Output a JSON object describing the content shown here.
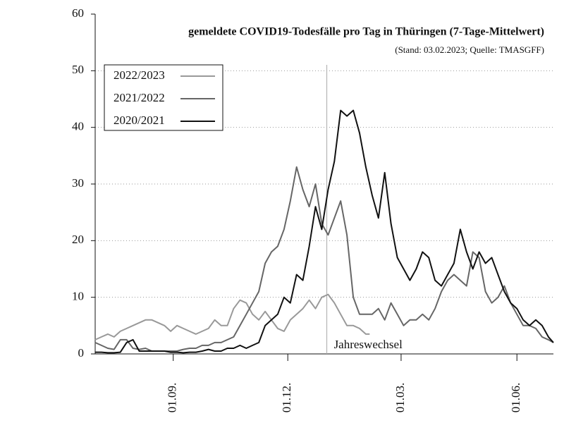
{
  "chart_data": {
    "type": "line",
    "title": "gemeldete COVID19-Todesfälle pro Tag in Thüringen (7-Tage-Mittelwert)",
    "subtitle": "(Stand: 03.02.2023; Quelle: TMASGFF)",
    "xlim": [
      0,
      364
    ],
    "xticks": [
      {
        "value": 62,
        "label": "01.09."
      },
      {
        "value": 153,
        "label": "01.12."
      },
      {
        "value": 243,
        "label": "01.03."
      },
      {
        "value": 335,
        "label": "01.06."
      }
    ],
    "ylim": [
      0,
      60
    ],
    "yticks": [
      0,
      10,
      20,
      30,
      40,
      50,
      60
    ],
    "grid": true,
    "legend": "upper left",
    "annotation": {
      "text": "Jahreswechsel",
      "x": 184
    },
    "series": [
      {
        "name": "2022/2023",
        "color": "#999999",
        "x": [
          0,
          5,
          10,
          15,
          20,
          25,
          30,
          35,
          40,
          45,
          50,
          55,
          60,
          65,
          70,
          75,
          80,
          85,
          90,
          95,
          100,
          105,
          110,
          115,
          120,
          125,
          130,
          135,
          140,
          145,
          150,
          155,
          160,
          165,
          170,
          175,
          180,
          185,
          190,
          195,
          200,
          205,
          210,
          215,
          218
        ],
        "values": [
          2.5,
          3,
          3.5,
          3,
          4,
          4.5,
          5,
          5.5,
          6,
          6,
          5.5,
          5,
          4,
          5,
          4.5,
          4,
          3.5,
          4,
          4.5,
          6,
          5,
          5,
          8,
          9.5,
          9,
          7,
          6,
          7.5,
          6,
          4.5,
          4,
          6,
          7,
          8,
          9.5,
          8,
          10,
          10.5,
          9,
          7,
          5,
          5,
          4.5,
          3.5,
          3.5
        ]
      },
      {
        "name": "2021/2022",
        "color": "#666666",
        "x": [
          0,
          5,
          10,
          15,
          20,
          25,
          30,
          35,
          40,
          45,
          50,
          55,
          60,
          65,
          70,
          75,
          80,
          85,
          90,
          95,
          100,
          105,
          110,
          115,
          120,
          125,
          130,
          135,
          140,
          145,
          150,
          155,
          160,
          165,
          170,
          175,
          180,
          185,
          190,
          195,
          200,
          205,
          210,
          215,
          220,
          225,
          230,
          235,
          240,
          245,
          250,
          255,
          260,
          265,
          270,
          275,
          280,
          285,
          290,
          295,
          300,
          305,
          310,
          315,
          320,
          325,
          330,
          335,
          340,
          345,
          350,
          355,
          360,
          364
        ],
        "values": [
          2,
          1.5,
          1,
          0.8,
          2.5,
          2.5,
          1,
          0.8,
          1,
          0.5,
          0.5,
          0.5,
          0.5,
          0.5,
          0.8,
          1,
          1,
          1.5,
          1.5,
          2,
          2,
          2.5,
          3,
          5,
          7,
          9,
          11,
          16,
          18,
          19,
          22,
          27,
          33,
          29,
          26,
          30,
          23,
          21,
          24,
          27,
          21,
          10,
          7,
          7,
          7,
          8,
          6,
          9,
          7,
          5,
          6,
          6,
          7,
          6,
          8,
          11,
          13,
          14,
          13,
          12,
          18,
          17,
          11,
          9,
          10,
          12,
          9,
          7,
          5,
          5,
          4.5,
          3,
          2.5,
          2
        ]
      },
      {
        "name": "2020/2021",
        "color": "#111111",
        "x": [
          0,
          5,
          10,
          15,
          20,
          25,
          30,
          35,
          40,
          45,
          50,
          55,
          60,
          65,
          70,
          75,
          80,
          85,
          90,
          95,
          100,
          105,
          110,
          115,
          120,
          125,
          130,
          135,
          140,
          145,
          150,
          155,
          160,
          165,
          170,
          175,
          180,
          185,
          190,
          195,
          200,
          205,
          210,
          215,
          220,
          225,
          230,
          235,
          240,
          245,
          250,
          255,
          260,
          265,
          270,
          275,
          280,
          285,
          290,
          295,
          300,
          305,
          310,
          315,
          320,
          325,
          330,
          335,
          340,
          345,
          350,
          355,
          360,
          364
        ],
        "values": [
          0.3,
          0.3,
          0.2,
          0.2,
          0.3,
          2,
          2.5,
          0.5,
          0.5,
          0.5,
          0.5,
          0.5,
          0.3,
          0.3,
          0.2,
          0.3,
          0.3,
          0.5,
          0.8,
          0.5,
          0.5,
          1,
          1,
          1.5,
          1,
          1.5,
          2,
          5,
          6,
          7,
          10,
          9,
          14,
          13,
          19,
          26,
          22,
          29,
          34,
          43,
          42,
          43,
          39,
          33,
          28,
          24,
          32,
          23,
          17,
          15,
          13,
          15,
          18,
          17,
          13,
          12,
          14,
          16,
          22,
          18,
          15,
          18,
          16,
          17,
          14,
          11,
          9,
          8,
          6,
          5,
          6,
          5,
          3,
          2
        ]
      }
    ]
  }
}
